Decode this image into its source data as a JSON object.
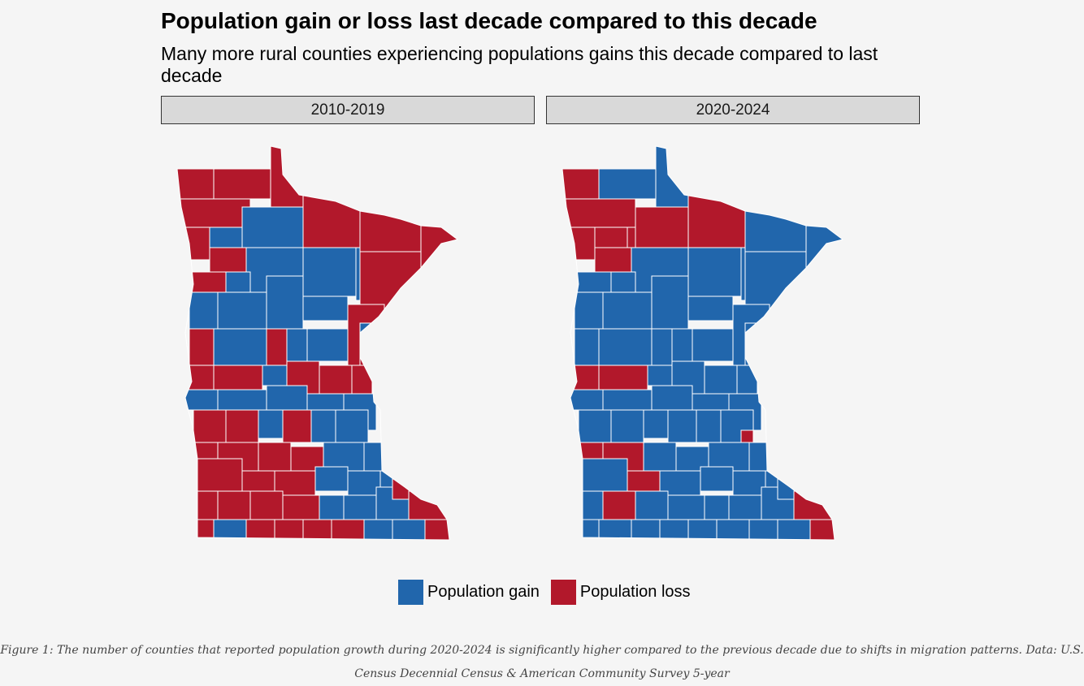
{
  "title": "Population gain or loss last decade compared to this decade",
  "subtitle": "Many more rural counties experiencing populations gains this decade compared to last decade",
  "panels": [
    {
      "label": "2010-2019"
    },
    {
      "label": "2020-2024"
    }
  ],
  "legend": {
    "items": [
      {
        "label": "Population gain",
        "color": "#2166ac"
      },
      {
        "label": "Population loss",
        "color": "#b2182b"
      }
    ]
  },
  "caption": "Figure 1: The number of counties that reported population growth during 2020-2024 is significantly higher compared to the previous decade due to shifts in migration patterns. Data: U.S. Census Decennial Census & American Community Survey 5-year",
  "colors": {
    "gain": "#2166ac",
    "loss": "#b2182b",
    "border": "#ffffff"
  }
}
